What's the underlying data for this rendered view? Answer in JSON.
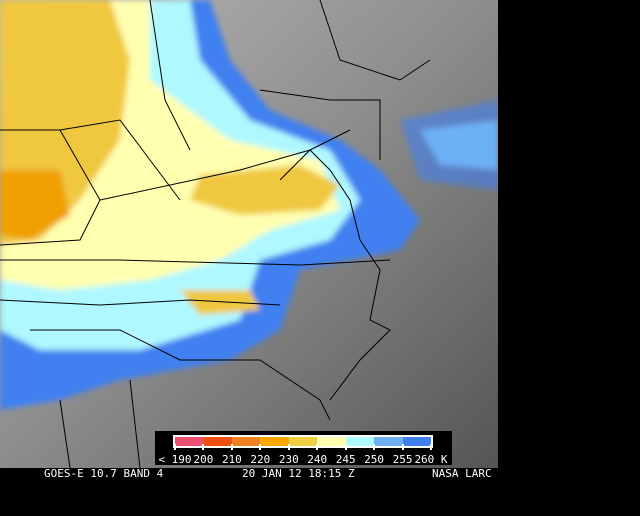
{
  "caption": {
    "satellite": "GOES-E 10.7 BAND 4",
    "datetime": "20 JAN 12 18:15 Z",
    "source": "NASA LARC"
  },
  "legend": {
    "ticks": [
      "< 190",
      "200",
      "210",
      "220",
      "230",
      "240",
      "245",
      "250",
      "255",
      "260 K"
    ],
    "colors": [
      "#f05070",
      "#f05010",
      "#f08020",
      "#f8a800",
      "#f0d040",
      "#ffffb0",
      "#b0f8ff",
      "#70b0f0",
      "#4080f0"
    ]
  }
}
